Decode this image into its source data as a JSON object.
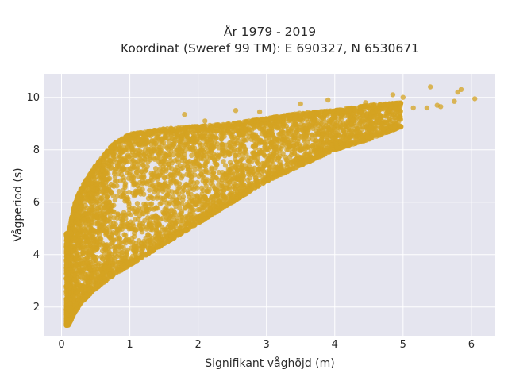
{
  "chart_data": {
    "type": "scatter",
    "title_line1": "År 1979 - 2019",
    "title_line2": "Koordinat (Sweref 99 TM): E 690327, N 6530671",
    "xlabel": "Signifikant våghöjd (m)",
    "ylabel": "Vågperiod (s)",
    "xlim": [
      -0.25,
      6.35
    ],
    "ylim": [
      0.9,
      10.9
    ],
    "xticks": [
      0,
      1,
      2,
      3,
      4,
      5,
      6
    ],
    "yticks": [
      2,
      4,
      6,
      8,
      10
    ],
    "grid": true,
    "background": "#e5e5ef",
    "marker_color": "#d4a321",
    "series": [
      {
        "approx_envelope": {
          "x": [
            0.1,
            0.2,
            0.3,
            0.5,
            0.75,
            1.0,
            1.25,
            1.5,
            2.0,
            2.5,
            3.0,
            3.5,
            4.0,
            4.5,
            5.0
          ],
          "t_lower": [
            1.3,
            1.8,
            2.2,
            2.7,
            3.2,
            3.6,
            4.0,
            4.4,
            5.2,
            6.0,
            6.8,
            7.4,
            8.0,
            8.4,
            8.9
          ],
          "t_upper": [
            4.8,
            6.0,
            6.6,
            7.4,
            8.2,
            8.6,
            8.7,
            8.8,
            8.9,
            9.0,
            9.2,
            9.4,
            9.5,
            9.7,
            9.8
          ]
        },
        "outlier_points": [
          {
            "x": 5.4,
            "y": 10.4
          },
          {
            "x": 5.8,
            "y": 10.2
          },
          {
            "x": 5.85,
            "y": 10.3
          },
          {
            "x": 6.05,
            "y": 9.95
          },
          {
            "x": 5.0,
            "y": 10.0
          },
          {
            "x": 4.85,
            "y": 10.1
          },
          {
            "x": 5.5,
            "y": 9.7
          },
          {
            "x": 5.55,
            "y": 9.65
          },
          {
            "x": 5.75,
            "y": 9.85
          },
          {
            "x": 5.35,
            "y": 9.6
          },
          {
            "x": 5.15,
            "y": 9.6
          },
          {
            "x": 4.6,
            "y": 9.7
          },
          {
            "x": 4.45,
            "y": 9.8
          },
          {
            "x": 4.8,
            "y": 9.5
          },
          {
            "x": 4.95,
            "y": 9.4
          },
          {
            "x": 2.1,
            "y": 9.1
          },
          {
            "x": 1.8,
            "y": 9.35
          },
          {
            "x": 2.55,
            "y": 9.5
          },
          {
            "x": 3.5,
            "y": 9.75
          },
          {
            "x": 3.9,
            "y": 9.9
          },
          {
            "x": 2.9,
            "y": 9.45
          }
        ]
      }
    ]
  }
}
